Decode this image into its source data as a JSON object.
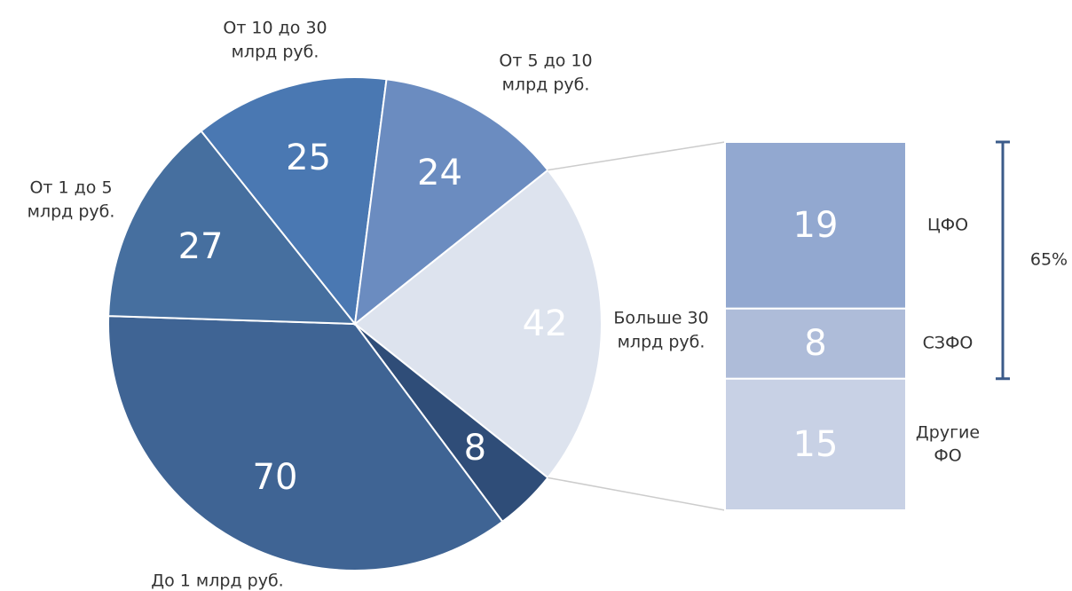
{
  "chart_data": [
    {
      "type": "pie",
      "categories": [
        "Больше 30\nмлрд руб.",
        null,
        "До 1 млрд руб.",
        "От 1 до 5\nмлрд руб.",
        "От 10 до 30\nмлрд руб.",
        "От 5 до 10\nмлрд руб."
      ],
      "values": [
        42,
        8,
        70,
        27,
        25,
        24
      ],
      "colors": [
        "#dde3ee",
        "#2f4d78",
        "#3f6494",
        "#466f9f",
        "#4a78b2",
        "#6b8cc0"
      ]
    },
    {
      "type": "bar",
      "categories": [
        "ЦФО",
        "СЗФО",
        "Другие\nФО"
      ],
      "values": [
        19,
        8,
        15
      ],
      "colors": [
        "#92a8d0",
        "#aebcd9",
        "#c8d1e5"
      ],
      "annotation": "65%"
    }
  ]
}
